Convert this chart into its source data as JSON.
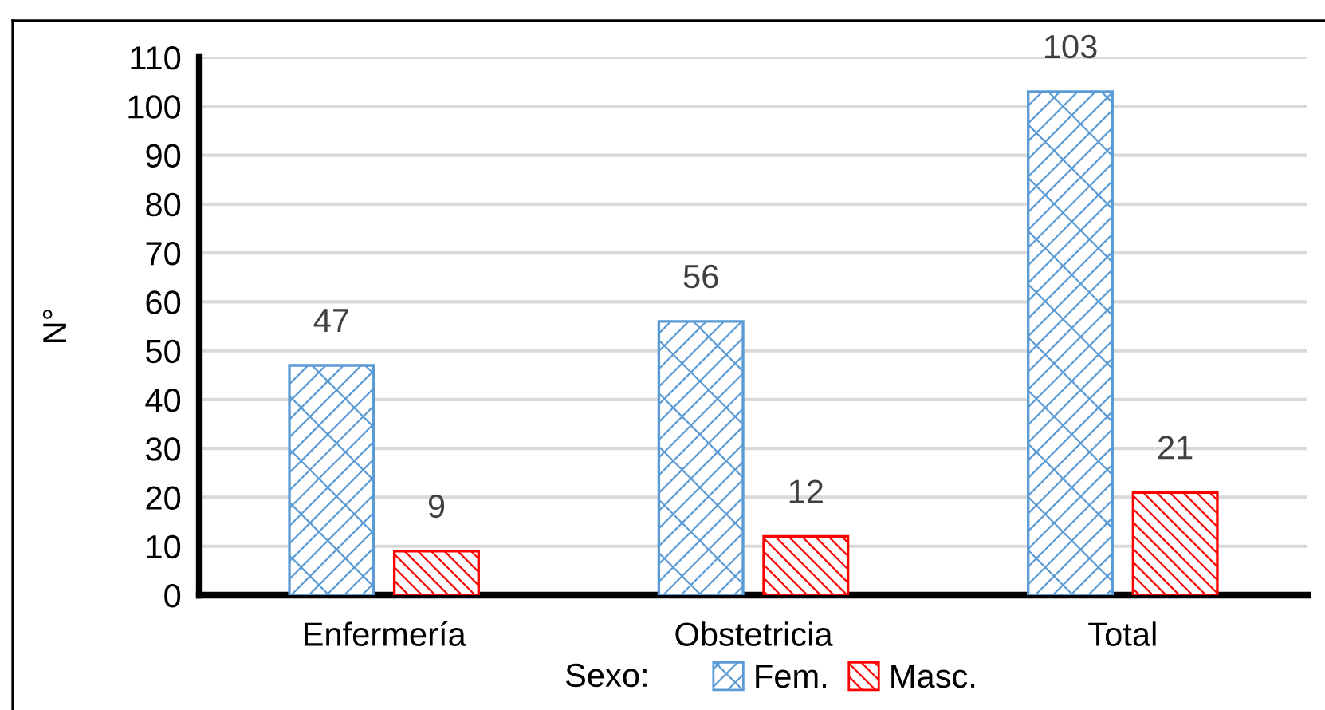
{
  "chart_data": {
    "type": "bar",
    "categories": [
      "Enfermería",
      "Obstetricia",
      "Total"
    ],
    "series": [
      {
        "name": "Fem.",
        "color": "#5b9bd5",
        "values": [
          47,
          56,
          103
        ]
      },
      {
        "name": "Masc.",
        "color": "#ff0000",
        "values": [
          9,
          12,
          21
        ]
      }
    ],
    "ylabel": "N°",
    "legend_title": "Sexo:",
    "ylim": [
      0,
      110
    ],
    "yticks": [
      0,
      10,
      20,
      30,
      40,
      50,
      60,
      70,
      80,
      90,
      100,
      110
    ],
    "grid": "y",
    "legend": "bottom",
    "data_labels": true
  }
}
